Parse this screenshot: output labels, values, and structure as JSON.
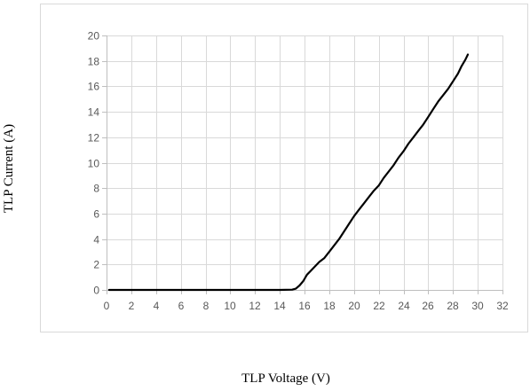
{
  "chart_data": {
    "type": "line",
    "title": "",
    "xlabel": "TLP Voltage (V)",
    "ylabel": "TLP Current (A)",
    "xlim": [
      0,
      32
    ],
    "ylim": [
      0,
      20
    ],
    "xticks": [
      0,
      2,
      4,
      6,
      8,
      10,
      12,
      14,
      16,
      18,
      20,
      22,
      24,
      26,
      28,
      30,
      32
    ],
    "yticks": [
      0,
      2,
      4,
      6,
      8,
      10,
      12,
      14,
      16,
      18,
      20
    ],
    "grid": true,
    "legend": "none",
    "colors": {
      "series": "#000000",
      "grid": "#d9d9d9",
      "frame": "#d9d9d9",
      "tick_text": "#595959"
    },
    "series": [
      {
        "x": [
          0.2,
          2,
          4,
          6,
          8,
          10,
          12,
          14,
          15.0,
          15.3,
          15.6,
          15.9,
          16.2,
          16.5,
          16.9,
          17.2,
          17.6,
          18.0,
          18.4,
          18.8,
          19.2,
          19.6,
          20.0,
          20.4,
          20.8,
          21.2,
          21.6,
          22.0,
          22.4,
          22.8,
          23.2,
          23.6,
          24.0,
          24.4,
          24.8,
          25.2,
          25.6,
          26.0,
          26.4,
          26.8,
          27.2,
          27.6,
          28.0,
          28.4,
          28.7,
          29.0,
          29.2
        ],
        "y": [
          0,
          0,
          0,
          0,
          0,
          0,
          0,
          0,
          0.02,
          0.1,
          0.35,
          0.7,
          1.2,
          1.5,
          1.9,
          2.2,
          2.5,
          3.0,
          3.5,
          4.0,
          4.6,
          5.2,
          5.8,
          6.3,
          6.8,
          7.3,
          7.8,
          8.2,
          8.8,
          9.3,
          9.8,
          10.4,
          10.9,
          11.5,
          12.0,
          12.5,
          13.0,
          13.6,
          14.2,
          14.8,
          15.3,
          15.8,
          16.4,
          17.0,
          17.6,
          18.1,
          18.5
        ]
      }
    ]
  }
}
